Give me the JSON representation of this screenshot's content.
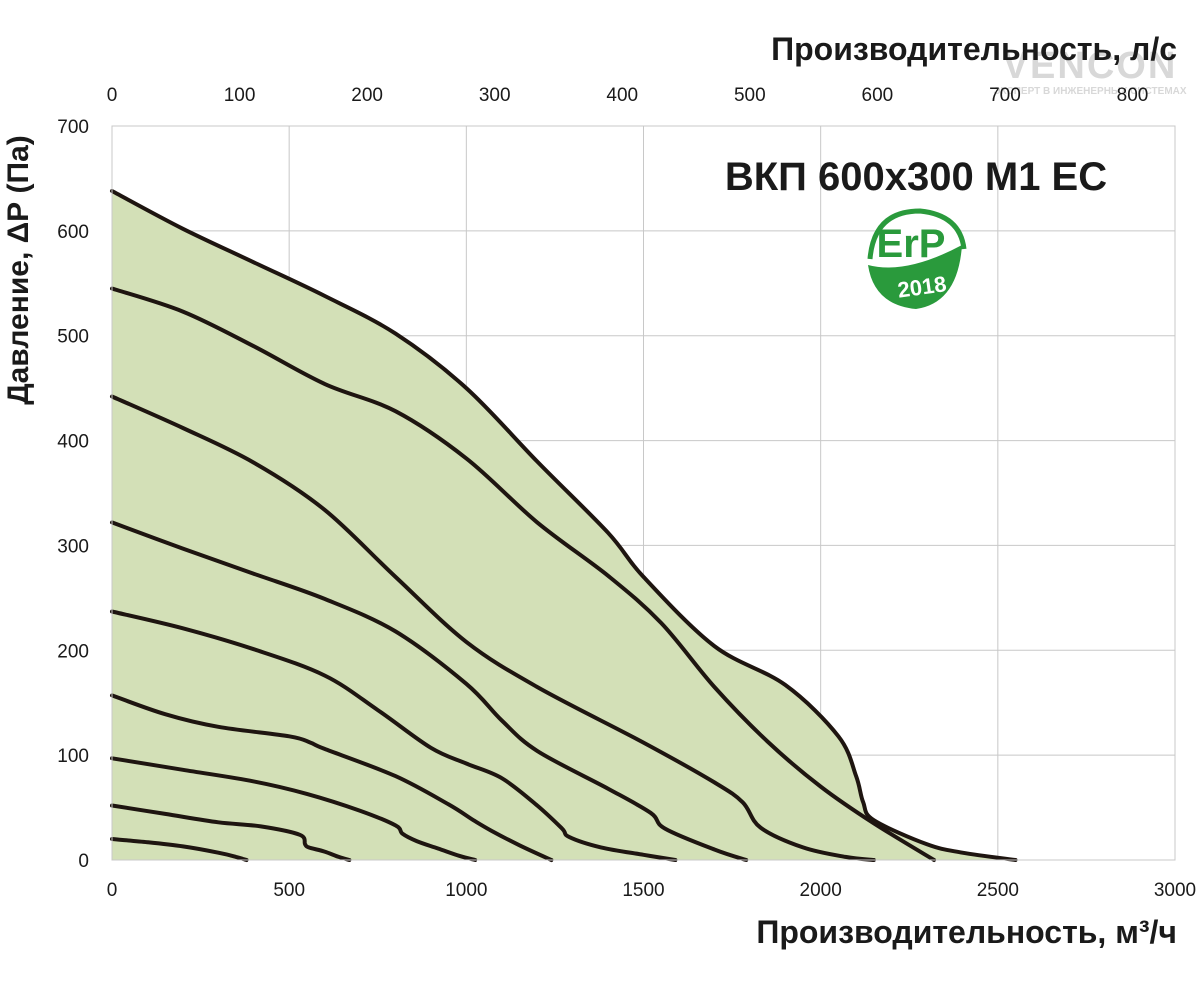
{
  "chart_data": {
    "type": "line",
    "title": "ВКП 600x300 М1 ЕС",
    "xlabel": "Производительность, м³/ч",
    "x2label": "Производительность, л/с",
    "ylabel": "Давление, ΔР (Па)",
    "xlim": [
      0,
      3000
    ],
    "x2lim": [
      0,
      833.33
    ],
    "ylim": [
      0,
      700
    ],
    "x_ticks": [
      "0",
      "500",
      "1000",
      "1500",
      "2000",
      "2500",
      "3000"
    ],
    "x2_ticks": [
      "0",
      "100",
      "200",
      "300",
      "400",
      "500",
      "600",
      "700",
      "800"
    ],
    "y_ticks": [
      "0",
      "100",
      "200",
      "300",
      "400",
      "500",
      "600",
      "700"
    ],
    "grid": true,
    "operating_area_color": "#d3e0b7",
    "curve_color": "#1e1510",
    "series": [
      {
        "x": [
          0,
          100,
          200,
          300,
          350,
          370,
          380
        ],
        "y": [
          20,
          17,
          13,
          7,
          3,
          1,
          0
        ]
      },
      {
        "x": [
          0,
          150,
          300,
          420,
          530,
          545,
          555,
          600,
          640,
          670
        ],
        "y": [
          52,
          44,
          36,
          32,
          24,
          15,
          12,
          8,
          3,
          0
        ]
      },
      {
        "x": [
          0,
          200,
          400,
          550,
          700,
          800,
          820,
          860,
          920,
          980,
          1025
        ],
        "y": [
          97,
          86,
          75,
          63,
          47,
          33,
          25,
          18,
          11,
          4,
          0
        ]
      },
      {
        "x": [
          0,
          150,
          300,
          500,
          560,
          600,
          800,
          950,
          1020,
          1070,
          1150,
          1240
        ],
        "y": [
          157,
          139,
          127,
          118,
          112,
          106,
          80,
          53,
          38,
          28,
          14,
          0
        ]
      },
      {
        "x": [
          0,
          200,
          400,
          600,
          750,
          900,
          1000,
          1100,
          1200,
          1270,
          1290,
          1380,
          1500,
          1590
        ],
        "y": [
          237,
          221,
          201,
          176,
          143,
          107,
          92,
          78,
          52,
          30,
          22,
          12,
          5,
          0
        ]
      },
      {
        "x": [
          0,
          200,
          400,
          600,
          800,
          1000,
          1100,
          1200,
          1400,
          1520,
          1560,
          1700,
          1790
        ],
        "y": [
          322,
          297,
          273,
          249,
          218,
          168,
          133,
          104,
          68,
          45,
          30,
          10,
          0
        ]
      },
      {
        "x": [
          0,
          200,
          400,
          600,
          800,
          1000,
          1200,
          1500,
          1700,
          1780,
          1830,
          1950,
          2070,
          2150
        ],
        "y": [
          442,
          412,
          379,
          334,
          270,
          208,
          165,
          112,
          74,
          55,
          31,
          12,
          3,
          0
        ]
      },
      {
        "x": [
          0,
          200,
          400,
          600,
          800,
          1000,
          1200,
          1400,
          1550,
          1700,
          1850,
          2000,
          2150,
          2320
        ],
        "y": [
          545,
          523,
          490,
          454,
          428,
          383,
          322,
          271,
          226,
          165,
          113,
          70,
          35,
          0
        ]
      },
      {
        "x": [
          0,
          200,
          400,
          600,
          800,
          1000,
          1200,
          1400,
          1500,
          1700,
          1900,
          2050,
          2100,
          2120,
          2150,
          2300,
          2400,
          2550
        ],
        "y": [
          638,
          602,
          570,
          538,
          502,
          450,
          380,
          312,
          270,
          204,
          167,
          118,
          80,
          55,
          38,
          15,
          7,
          0
        ]
      }
    ]
  },
  "badge": {
    "label": "ErP",
    "year": "2018",
    "color": "#2a9a3c"
  },
  "watermark": {
    "brand": "VENCON",
    "tagline": "ЭКСПЕРТ В ИНЖЕНЕРНЫХ СИСТЕМАХ"
  }
}
